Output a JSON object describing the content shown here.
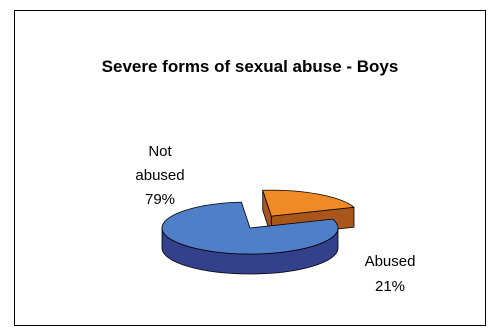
{
  "chart_data": {
    "type": "pie",
    "title": "Severe forms of sexual abuse - Boys",
    "slices": [
      {
        "label": "Not abused",
        "value": 79,
        "value_label": "79%",
        "color": "#4f7fc9",
        "side_color": "#33408c"
      },
      {
        "label": "Abused",
        "value": 21,
        "value_label": "21%",
        "color": "#ef8a27",
        "side_color": "#a8561c",
        "exploded": true
      }
    ],
    "style": "3d-exploded"
  }
}
